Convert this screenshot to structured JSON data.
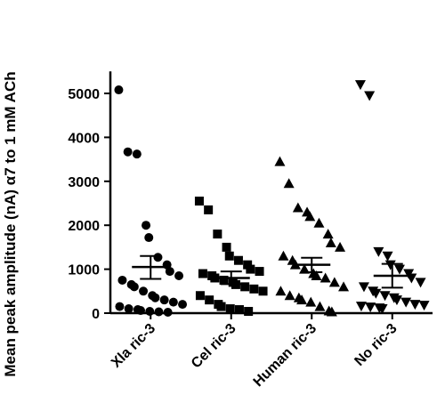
{
  "chart_data": {
    "type": "scatter",
    "title": "",
    "xlabel": "",
    "ylabel": "Mean peak amplitude (nA) α7 to 1 mM ACh",
    "ylim": [
      0,
      5500
    ],
    "yticks": [
      0,
      1000,
      2000,
      3000,
      4000,
      5000
    ],
    "categories": [
      "Xla ric-3",
      "Cel ric-3",
      "Human ric-3",
      "No ric-3"
    ],
    "series": [
      {
        "category": "Xla ric-3",
        "marker": "circle",
        "values": [
          5080,
          3670,
          3620,
          2000,
          1720,
          1270,
          1100,
          950,
          850,
          750,
          650,
          600,
          500,
          400,
          350,
          300,
          250,
          200,
          150,
          100,
          80,
          60,
          40,
          30,
          20
        ],
        "mean": 1050,
        "sem_upper": 1300,
        "sem_lower": 780
      },
      {
        "category": "Cel ric-3",
        "marker": "square",
        "values": [
          2550,
          2350,
          1800,
          1500,
          1300,
          1200,
          1100,
          1000,
          950,
          900,
          850,
          800,
          750,
          700,
          650,
          600,
          550,
          500,
          400,
          300,
          200,
          150,
          100,
          80,
          40
        ],
        "mean": 800,
        "sem_upper": 950,
        "sem_lower": 660
      },
      {
        "category": "Human ric-3",
        "marker": "triangle-up",
        "values": [
          3450,
          2950,
          2400,
          2300,
          2200,
          2050,
          1800,
          1600,
          1500,
          1300,
          1200,
          1100,
          1000,
          900,
          850,
          800,
          700,
          600,
          500,
          400,
          350,
          300,
          250,
          150,
          50,
          30
        ],
        "mean": 1100,
        "sem_upper": 1260,
        "sem_lower": 930
      },
      {
        "category": "No ric-3",
        "marker": "triangle-down",
        "values": [
          5200,
          4950,
          1400,
          1300,
          1100,
          1000,
          900,
          800,
          700,
          600,
          500,
          450,
          400,
          350,
          300,
          250,
          200,
          180,
          160,
          140,
          120,
          100
        ],
        "mean": 850,
        "sem_upper": 1120,
        "sem_lower": 580
      }
    ],
    "grid": false,
    "legend": "none",
    "color": "#000000"
  }
}
